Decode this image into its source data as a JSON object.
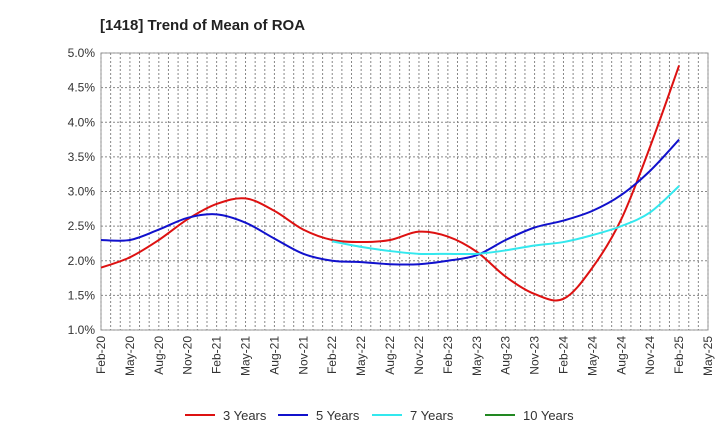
{
  "chart_data": {
    "type": "line",
    "title": "[1418]  Trend of Mean of ROA",
    "xlabel": "",
    "ylabel": "",
    "x_tick_labels": [
      "Feb-20",
      "May-20",
      "Aug-20",
      "Nov-20",
      "Feb-21",
      "May-21",
      "Aug-21",
      "Nov-21",
      "Feb-22",
      "May-22",
      "Aug-22",
      "Nov-22",
      "Feb-23",
      "May-23",
      "Aug-23",
      "Nov-23",
      "Feb-24",
      "May-24",
      "Aug-24",
      "Nov-24",
      "Feb-25",
      "May-25"
    ],
    "y_tick_labels": [
      "1.0%",
      "1.5%",
      "2.0%",
      "2.5%",
      "3.0%",
      "3.5%",
      "4.0%",
      "4.5%",
      "5.0%"
    ],
    "ylim": [
      1.0,
      5.0
    ],
    "grid": true,
    "legend_position": "bottom",
    "series": [
      {
        "name": "3 Years",
        "color": "#dd1111",
        "values": [
          1.9,
          2.05,
          2.3,
          2.6,
          2.82,
          2.9,
          2.72,
          2.45,
          2.3,
          2.27,
          2.3,
          2.42,
          2.35,
          2.13,
          1.77,
          1.52,
          1.45,
          1.9,
          2.6,
          3.65,
          4.82,
          null
        ]
      },
      {
        "name": "5 Years",
        "color": "#1111cc",
        "values": [
          2.3,
          2.3,
          2.45,
          2.62,
          2.67,
          2.55,
          2.32,
          2.1,
          2.0,
          1.98,
          1.95,
          1.95,
          2.0,
          2.08,
          2.3,
          2.48,
          2.58,
          2.72,
          2.95,
          3.3,
          3.75,
          null
        ]
      },
      {
        "name": "7 Years",
        "color": "#33e8ee",
        "values": [
          null,
          null,
          null,
          null,
          null,
          null,
          null,
          null,
          2.28,
          2.2,
          2.14,
          2.1,
          2.1,
          2.1,
          2.15,
          2.22,
          2.27,
          2.37,
          2.5,
          2.7,
          3.08,
          null
        ]
      },
      {
        "name": "10 Years",
        "color": "#228822",
        "values": [
          null,
          null,
          null,
          null,
          null,
          null,
          null,
          null,
          null,
          null,
          null,
          null,
          null,
          null,
          null,
          null,
          null,
          null,
          null,
          null,
          null,
          null
        ]
      }
    ]
  }
}
